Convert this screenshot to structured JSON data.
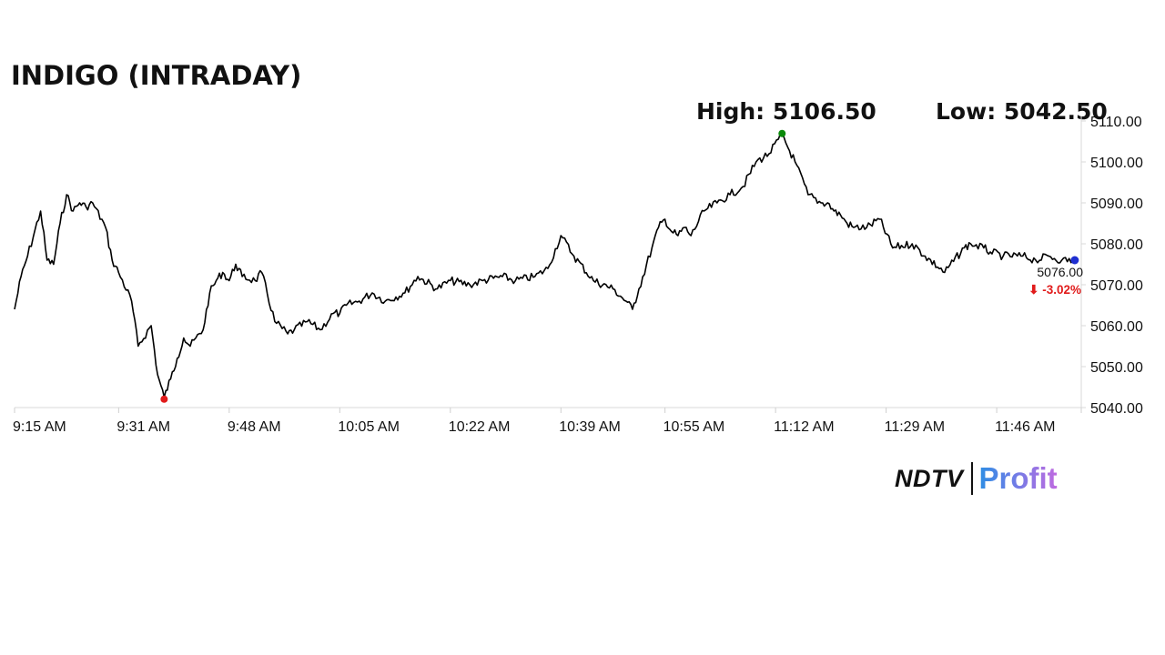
{
  "title": "INDIGO (INTRADAY)",
  "high_label": "High: 5106.50",
  "low_label": "Low: 5042.50",
  "brand": {
    "ndtv": "NDTV",
    "profit": "Profit"
  },
  "chart_data": {
    "type": "line",
    "title": "INDIGO (INTRADAY)",
    "high": 5106.5,
    "low": 5042.5,
    "last_price": "5076.00",
    "change": "⬇ -3.02%",
    "colors": {
      "line": "#000000",
      "high": "#0a8a0a",
      "low": "#e11b1b",
      "last": "#1f2fd1",
      "change": "#e11b1b"
    },
    "ylim": [
      5040,
      5110
    ],
    "y_ticks": [
      "5040.00",
      "5050.00",
      "5060.00",
      "5070.00",
      "5080.00",
      "5090.00",
      "5100.00",
      "5110.00"
    ],
    "x_ticks": [
      "9:15 AM",
      "9:31 AM",
      "9:48 AM",
      "10:05 AM",
      "10:22 AM",
      "10:39 AM",
      "10:55 AM",
      "11:12 AM",
      "11:29 AM",
      "11:46 AM"
    ],
    "x_tick_times": [
      915,
      931,
      948,
      1005,
      1022,
      1039,
      1055,
      1112,
      1129,
      1146
    ],
    "x": [
      "09:15",
      "09:16",
      "09:17",
      "09:19",
      "09:20",
      "09:21",
      "09:22",
      "09:23",
      "09:24",
      "09:25",
      "09:26",
      "09:27",
      "09:29",
      "09:30",
      "09:31",
      "09:33",
      "09:34",
      "09:36",
      "09:37",
      "09:38",
      "09:39",
      "09:40",
      "09:41",
      "09:42",
      "09:44",
      "09:45",
      "09:46",
      "09:47",
      "09:48",
      "09:49",
      "09:50",
      "09:52",
      "09:53",
      "09:55",
      "09:57",
      "09:58",
      "10:00",
      "10:02",
      "10:04",
      "10:05",
      "10:06",
      "10:08",
      "10:10",
      "10:12",
      "10:15",
      "10:17",
      "10:20",
      "10:22",
      "10:25",
      "10:27",
      "10:30",
      "10:32",
      "10:35",
      "10:37",
      "10:39",
      "10:41",
      "10:44",
      "10:47",
      "10:49",
      "10:50",
      "10:51",
      "10:53",
      "10:54",
      "10:55",
      "10:56",
      "10:57",
      "10:58",
      "10:59",
      "11:01",
      "11:03",
      "11:05",
      "11:07",
      "11:09",
      "11:11",
      "11:13",
      "11:15",
      "11:17",
      "11:19",
      "11:20",
      "11:21",
      "11:22",
      "11:23",
      "11:24",
      "11:26",
      "11:28",
      "11:30",
      "11:33",
      "11:35",
      "11:38",
      "11:41",
      "11:42",
      "11:44",
      "11:45",
      "11:47",
      "11:50",
      "11:52",
      "11:54",
      "11:56",
      "11:58"
    ],
    "values": [
      5064,
      5072,
      5077,
      5088,
      5076,
      5075,
      5085,
      5092,
      5088,
      5090,
      5089,
      5090,
      5084,
      5076,
      5073,
      5066,
      5055,
      5060,
      5048,
      5042.5,
      5047,
      5052,
      5057,
      5055,
      5059,
      5068,
      5071,
      5073,
      5071,
      5075,
      5072,
      5071,
      5073,
      5061,
      5058,
      5059,
      5061,
      5059,
      5063,
      5063,
      5065,
      5066,
      5068,
      5066,
      5068,
      5072,
      5069,
      5071,
      5070,
      5071,
      5072,
      5071,
      5072,
      5074,
      5082,
      5077,
      5071,
      5069,
      5066,
      5064,
      5069,
      5079,
      5084,
      5086,
      5083,
      5082,
      5084,
      5082,
      5088,
      5090,
      5092,
      5094,
      5100,
      5102,
      5106.5,
      5100,
      5092,
      5090,
      5090,
      5088,
      5087,
      5085,
      5084,
      5084,
      5086,
      5079,
      5080,
      5077,
      5073,
      5079,
      5080,
      5079,
      5078,
      5077,
      5077,
      5076,
      5077,
      5076,
      5076
    ],
    "xlabel": "",
    "ylabel": "",
    "grid": false
  }
}
